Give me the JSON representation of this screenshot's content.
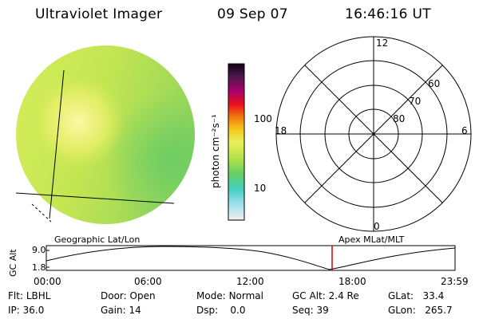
{
  "header": {
    "instrument": "Ultraviolet Imager",
    "date": "09 Sep 07",
    "time": "16:46:16 UT"
  },
  "colorbar": {
    "unit_label": "photon cm⁻²s⁻¹",
    "ticks": [
      "100",
      "10"
    ]
  },
  "polar_plot": {
    "mlt_labels": {
      "top": "12",
      "left": "18",
      "right": "6",
      "bottom": "0"
    },
    "lat_labels": [
      "60",
      "70",
      "80"
    ]
  },
  "timeline": {
    "left_caption": "Geographic Lat/Lon",
    "right_caption": "Apex MLat/MLT",
    "axis_label": "GC Alt",
    "y_ticks": [
      "9.0",
      "1.8"
    ],
    "x_ticks": [
      "00:00",
      "06:00",
      "12:00",
      "18:00",
      "23:59"
    ],
    "marker_color": "#cc0000"
  },
  "status": {
    "filter": {
      "label": "Flt:",
      "value": "LBHL"
    },
    "ip": {
      "label": "IP:",
      "value": "36.0"
    },
    "door": {
      "label": "Door:",
      "value": "Open"
    },
    "gain": {
      "label": "Gain:",
      "value": "14"
    },
    "mode": {
      "label": "Mode:",
      "value": "Normal"
    },
    "dsp": {
      "label": "Dsp:",
      "value": "0.0"
    },
    "gc_alt": {
      "label": "GC Alt:",
      "value": "2.4 Re"
    },
    "seq": {
      "label": "Seq:",
      "value": "39"
    },
    "glat": {
      "label": "GLat:",
      "value": "33.4"
    },
    "glon": {
      "label": "GLon:",
      "value": "265.7"
    }
  }
}
